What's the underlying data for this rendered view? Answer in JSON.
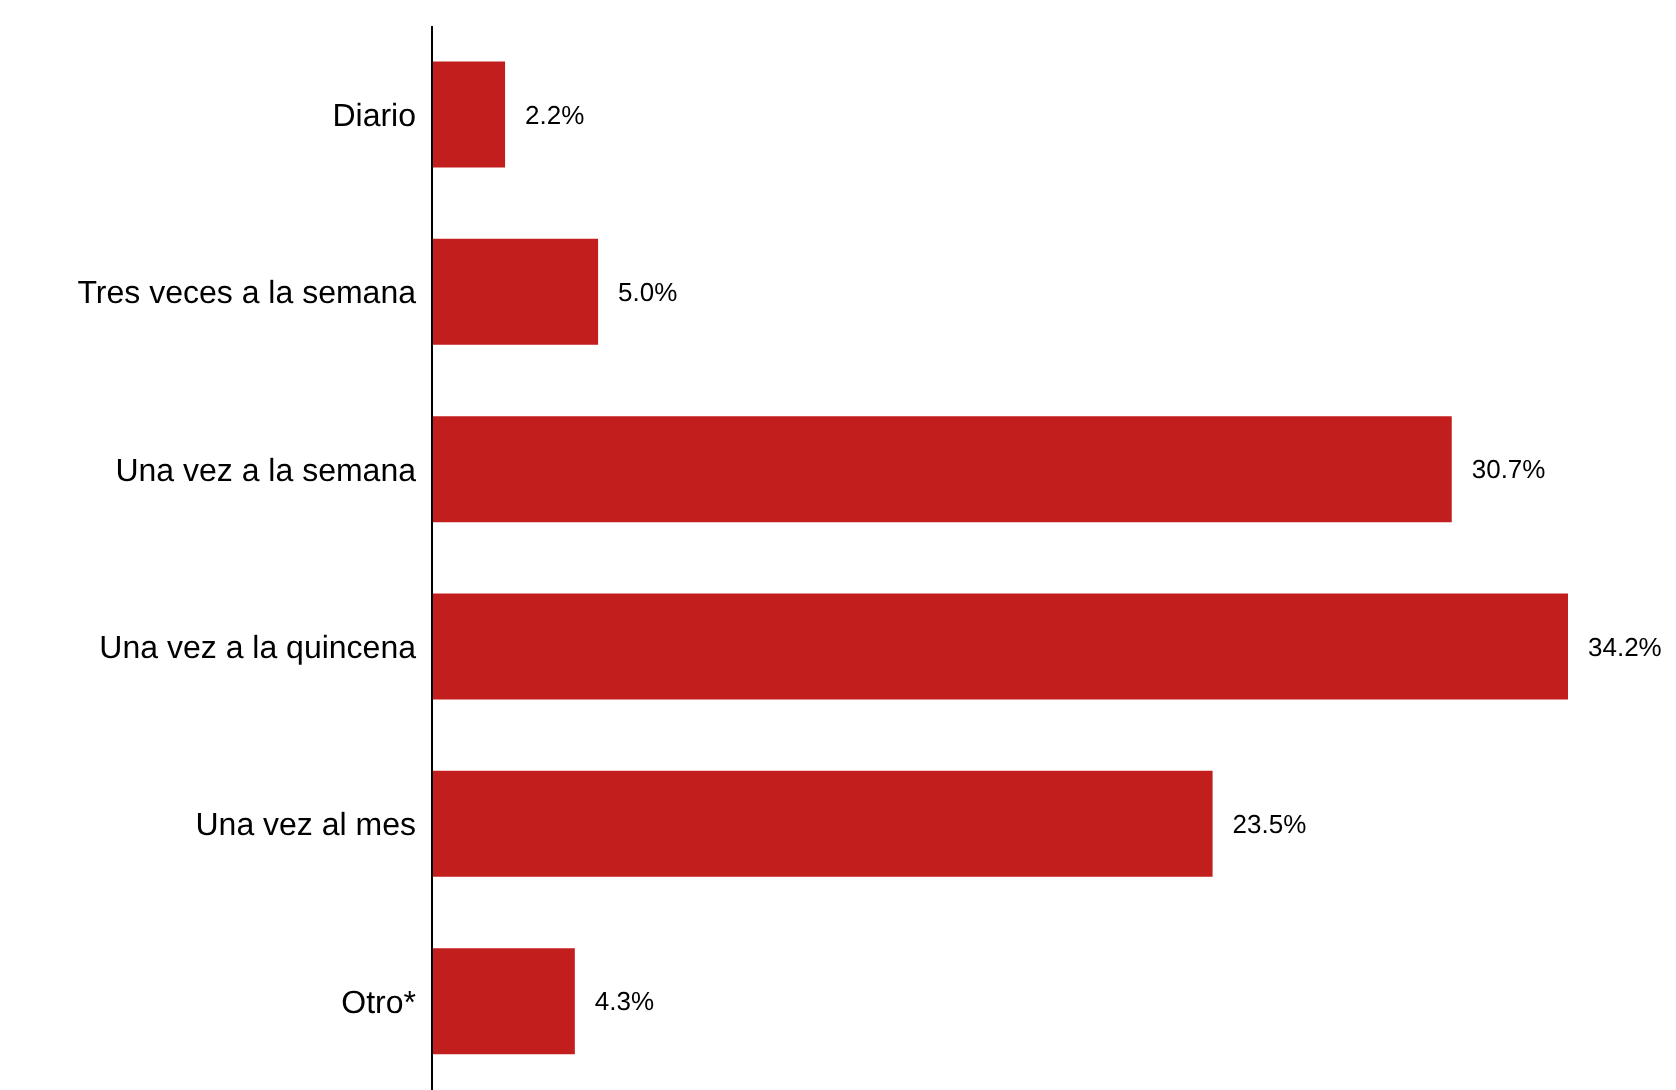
{
  "chart_data": {
    "type": "bar",
    "orientation": "horizontal",
    "categories": [
      "Diario",
      "Tres veces a la semana",
      "Una vez a la semana",
      "Una vez a la quincena",
      "Una vez al mes",
      "Otro*"
    ],
    "values": [
      2.2,
      5.0,
      30.7,
      34.2,
      23.5,
      4.3
    ],
    "value_labels": [
      "2.2%",
      "5.0%",
      "30.7%",
      "34.2%",
      "23.5%",
      "4.3%"
    ],
    "color": "#c21e1e",
    "tick_labels": "y"
  }
}
